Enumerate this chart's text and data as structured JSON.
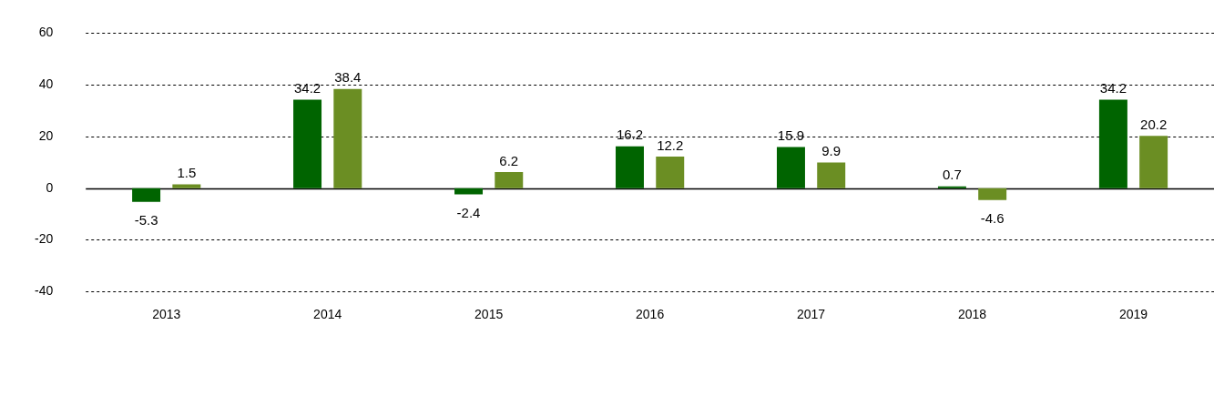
{
  "chart_data": {
    "type": "bar",
    "categories": [
      "2013",
      "2014",
      "2015",
      "2016",
      "2017",
      "2018",
      "2019"
    ],
    "series": [
      {
        "color": "#006400",
        "values": [
          -5.3,
          34.2,
          -2.4,
          16.2,
          15.9,
          0.7,
          34.2
        ]
      },
      {
        "color": "#6b8e23",
        "values": [
          1.5,
          38.4,
          6.2,
          12.2,
          9.9,
          -4.6,
          20.2
        ]
      }
    ],
    "ylim": [
      -40,
      60
    ],
    "yticks": [
      -40,
      -20,
      0,
      20,
      40,
      60
    ],
    "grid": "y",
    "data_labels": true,
    "legend": false
  }
}
